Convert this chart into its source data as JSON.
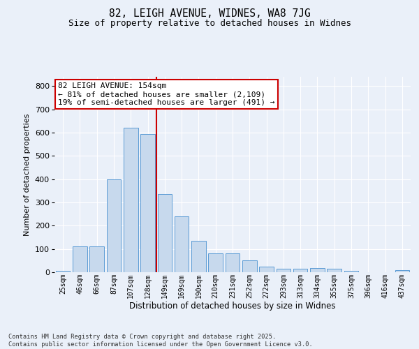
{
  "title": "82, LEIGH AVENUE, WIDNES, WA8 7JG",
  "subtitle": "Size of property relative to detached houses in Widnes",
  "xlabel": "Distribution of detached houses by size in Widnes",
  "ylabel": "Number of detached properties",
  "categories": [
    "25sqm",
    "46sqm",
    "66sqm",
    "87sqm",
    "107sqm",
    "128sqm",
    "149sqm",
    "169sqm",
    "190sqm",
    "210sqm",
    "231sqm",
    "252sqm",
    "272sqm",
    "293sqm",
    "313sqm",
    "334sqm",
    "355sqm",
    "375sqm",
    "396sqm",
    "416sqm",
    "437sqm"
  ],
  "values": [
    5,
    110,
    110,
    400,
    620,
    595,
    335,
    240,
    135,
    80,
    80,
    50,
    25,
    15,
    15,
    18,
    15,
    5,
    0,
    0,
    8
  ],
  "bar_color": "#c7d9ed",
  "bar_edge_color": "#5b9bd5",
  "bg_color": "#eaf0f9",
  "grid_color": "#ffffff",
  "vline_color": "#cc0000",
  "vline_pos": 5.5,
  "annotation_text": "82 LEIGH AVENUE: 154sqm\n← 81% of detached houses are smaller (2,109)\n19% of semi-detached houses are larger (491) →",
  "annotation_box_facecolor": "#ffffff",
  "annotation_box_edgecolor": "#cc0000",
  "footnote": "Contains HM Land Registry data © Crown copyright and database right 2025.\nContains public sector information licensed under the Open Government Licence v3.0.",
  "ylim": [
    0,
    840
  ],
  "yticks": [
    0,
    100,
    200,
    300,
    400,
    500,
    600,
    700,
    800
  ]
}
